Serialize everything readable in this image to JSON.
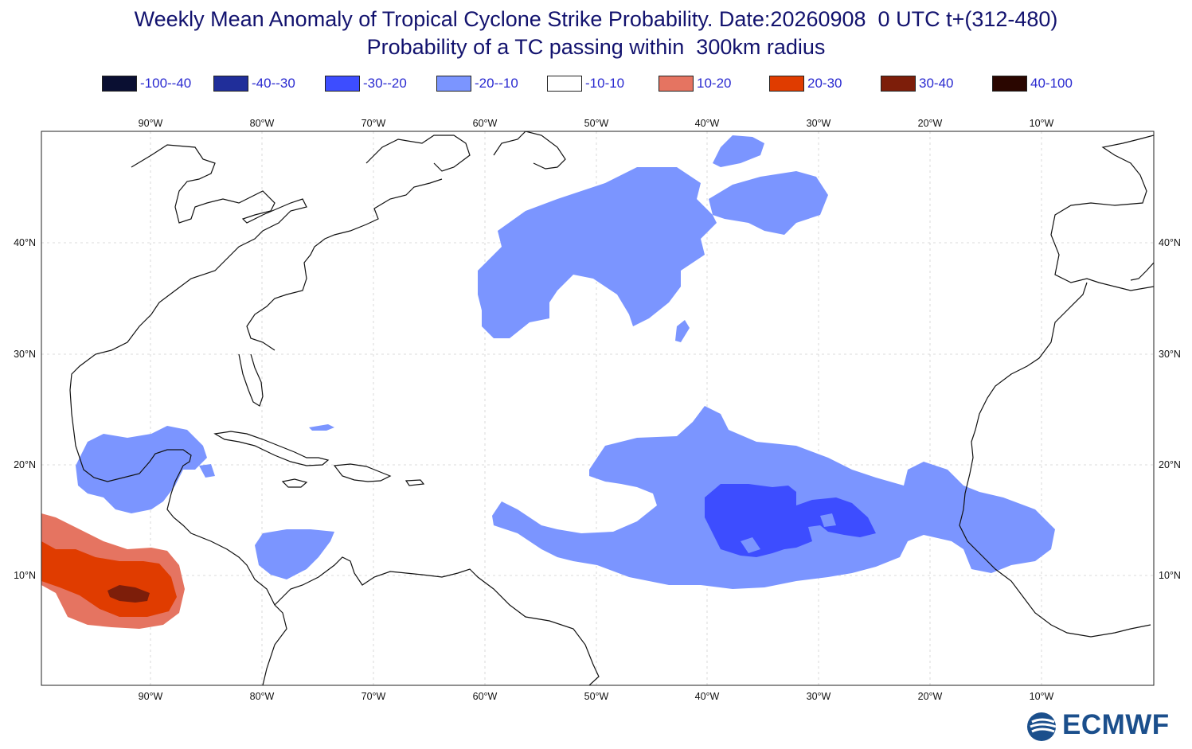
{
  "title_line1": "Weekly Mean Anomaly of Tropical Cyclone Strike Probability. Date:20260908  0 UTC t+(312-480)",
  "title_line2": "Probability of a TC passing within  300km radius",
  "legend": [
    {
      "label": "-100--40",
      "color": "#0a0f32"
    },
    {
      "label": "-40--30",
      "color": "#202e9a"
    },
    {
      "label": "-30--20",
      "color": "#3d4dff"
    },
    {
      "label": "-20--10",
      "color": "#7b95ff"
    },
    {
      "label": "-10-10",
      "color": "#ffffff"
    },
    {
      "label": "10-20",
      "color": "#e57461"
    },
    {
      "label": "20-30",
      "color": "#e03c00"
    },
    {
      "label": "30-40",
      "color": "#7d1e0a"
    },
    {
      "label": "40-100",
      "color": "#2a0600"
    }
  ],
  "lon_ticks": [
    "90°W",
    "80°W",
    "70°W",
    "60°W",
    "50°W",
    "40°W",
    "30°W",
    "20°W",
    "10°W"
  ],
  "lat_ticks": [
    "40°N",
    "30°N",
    "20°N",
    "10°N"
  ],
  "logo_text": "ECMWF"
}
